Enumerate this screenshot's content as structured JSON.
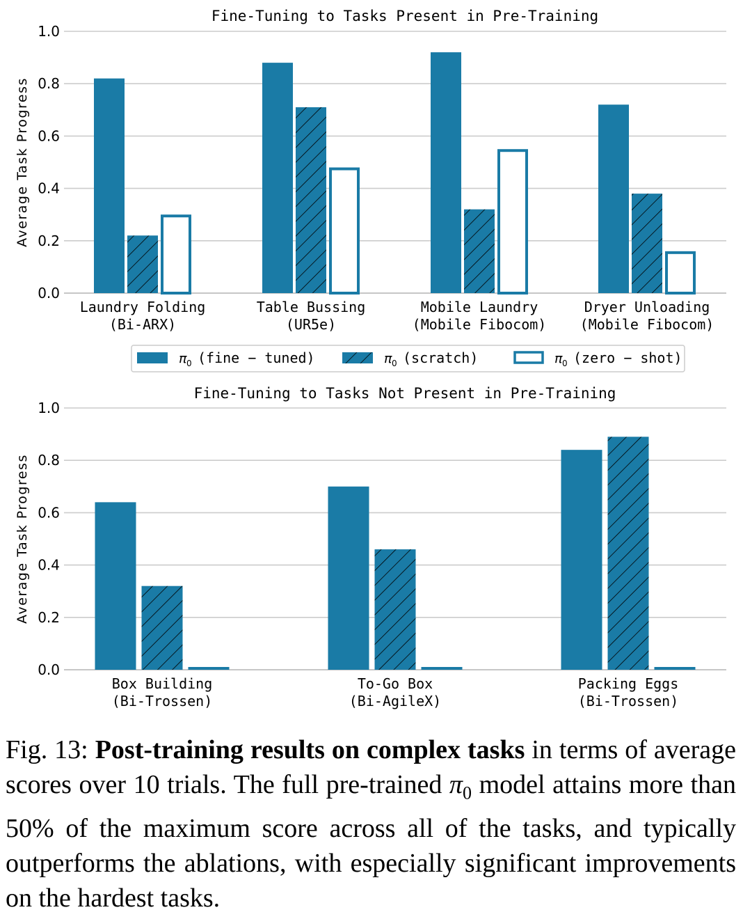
{
  "chart_data": [
    {
      "type": "bar",
      "title": "Fine-Tuning to Tasks Present in Pre-Training",
      "ylabel": "Average Task Progress",
      "ylim": [
        0,
        1.0
      ],
      "yticks": [
        "0.0",
        "0.2",
        "0.4",
        "0.6",
        "0.8",
        "1.0"
      ],
      "grid": true,
      "categories": [
        {
          "line1": "Laundry Folding",
          "line2": "(Bi-ARX)"
        },
        {
          "line1": "Table Bussing",
          "line2": "(UR5e)"
        },
        {
          "line1": "Mobile Laundry",
          "line2": "(Mobile Fibocom)"
        },
        {
          "line1": "Dryer Unloading",
          "line2": "(Mobile Fibocom)"
        }
      ],
      "series": [
        {
          "name": "fine-tuned",
          "style": "solid",
          "values": [
            0.82,
            0.88,
            0.92,
            0.72
          ]
        },
        {
          "name": "scratch",
          "style": "hatched",
          "values": [
            0.22,
            0.71,
            0.32,
            0.38
          ]
        },
        {
          "name": "zero-shot",
          "style": "outline",
          "values": [
            0.3,
            0.48,
            0.55,
            0.16
          ]
        }
      ],
      "legend": {
        "placement": "below",
        "prefix": "π",
        "subscript": "0",
        "labels": [
          "(fine − tuned)",
          "(scratch)",
          "(zero − shot)"
        ]
      }
    },
    {
      "type": "bar",
      "title": "Fine-Tuning to Tasks Not Present in Pre-Training",
      "ylabel": "Average Task Progress",
      "ylim": [
        0,
        1.0
      ],
      "yticks": [
        "0.0",
        "0.2",
        "0.4",
        "0.6",
        "0.8",
        "1.0"
      ],
      "grid": true,
      "categories": [
        {
          "line1": "Box Building",
          "line2": "(Bi-Trossen)"
        },
        {
          "line1": "To-Go Box",
          "line2": "(Bi-AgileX)"
        },
        {
          "line1": "Packing Eggs",
          "line2": "(Bi-Trossen)"
        }
      ],
      "series": [
        {
          "name": "fine-tuned",
          "style": "solid",
          "values": [
            0.64,
            0.7,
            0.84
          ]
        },
        {
          "name": "scratch",
          "style": "hatched",
          "values": [
            0.32,
            0.46,
            0.89
          ]
        },
        {
          "name": "zero-shot",
          "style": "solid",
          "values": [
            0.0,
            0.0,
            0.0
          ]
        }
      ]
    }
  ],
  "colors": {
    "bar": "#1a7ba6",
    "grid": "#cccccc",
    "hatch": "#000000"
  },
  "caption": {
    "label": "Fig. 13:",
    "bold": "Post-training results on complex tasks",
    "text_before_pi": "in terms of average scores over 10 trials. The full pre-trained",
    "pi": "π",
    "pi_sub": "0",
    "text_after_pi": "model attains more than 50% of the maximum score across all of the tasks, and typically outperforms the ablations, with especially significant improvements on the hardest tasks."
  }
}
